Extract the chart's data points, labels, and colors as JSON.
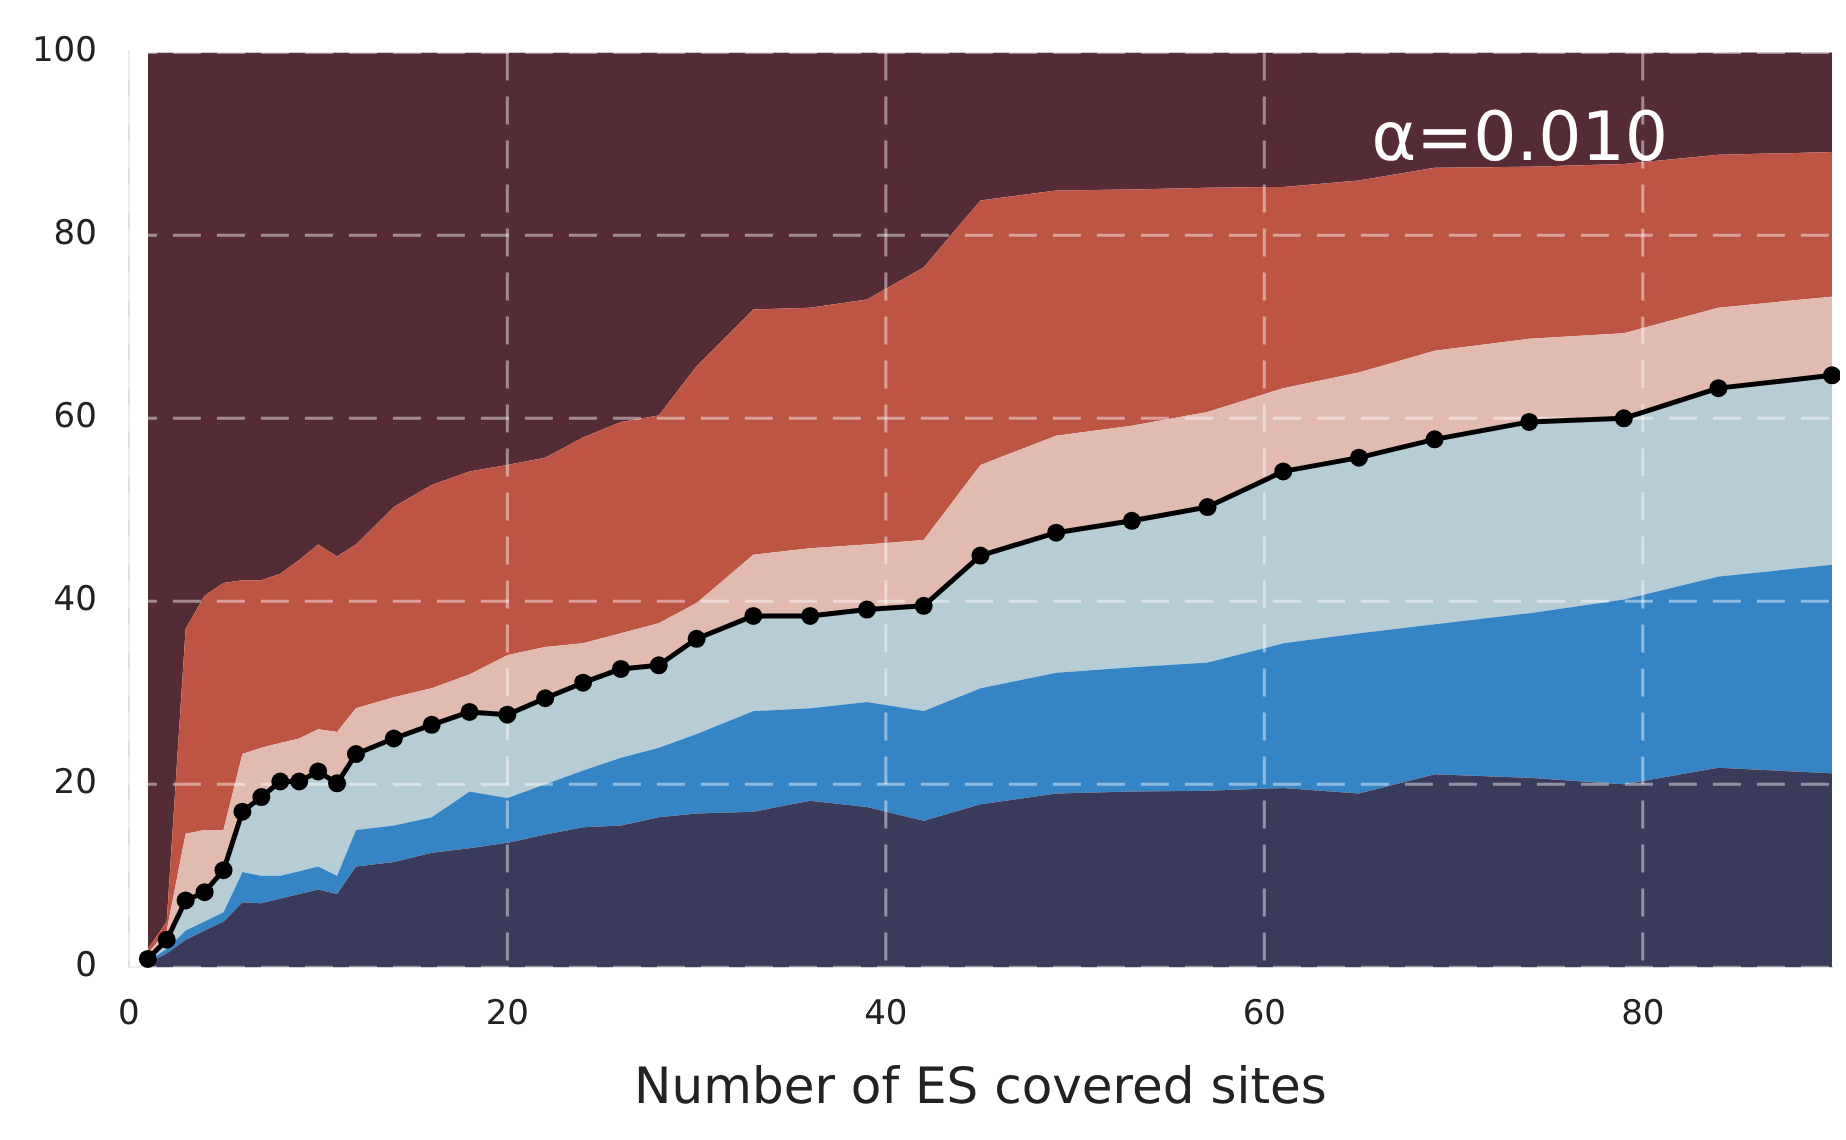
{
  "chart_data": {
    "type": "area",
    "stacked": true,
    "xlabel": "Number of ES covered sites",
    "annotations": [
      "α=0.010"
    ],
    "x": [
      1,
      2,
      3,
      4,
      5,
      6,
      7,
      8,
      9,
      10,
      11,
      12,
      14,
      16,
      18,
      20,
      22,
      24,
      26,
      28,
      30,
      33,
      36,
      39,
      42,
      45,
      49,
      53,
      57,
      61,
      65,
      69,
      74,
      79,
      84,
      90
    ],
    "series": [
      {
        "color": "#3a3a5a",
        "values": [
          0.5,
          1.5,
          3,
          4,
          5,
          7.1,
          7,
          7.5,
          8,
          8.5,
          8,
          11,
          11.5,
          12.5,
          13,
          13.6,
          14.5,
          15.3,
          15.5,
          16.4,
          16.8,
          17,
          18.2,
          17.5,
          16,
          17.8,
          19,
          19.2,
          19.3,
          19.6,
          19,
          21.1,
          20.7,
          20,
          21.8,
          21.2
        ]
      },
      {
        "color": "#3584c6",
        "values": [
          0.2,
          0.5,
          1,
          1,
          1,
          3.3,
          3,
          2.5,
          2.5,
          2.5,
          2,
          4,
          4,
          3.9,
          6.2,
          4.9,
          5.5,
          6.2,
          7.4,
          7.6,
          8.7,
          11,
          10.1,
          11.5,
          12,
          12.7,
          13.2,
          13.6,
          14,
          15.8,
          17.5,
          16.4,
          18,
          20.2,
          20.9,
          22.8
        ]
      },
      {
        "color": "#b7cdd6",
        "marker": "circle",
        "line_style": "solid",
        "values": [
          0.2,
          1,
          3.3,
          3.2,
          4.6,
          6.6,
          8.6,
          10.3,
          9.8,
          10.4,
          10.1,
          8.3,
          9.5,
          10.1,
          8.7,
          9.1,
          9.4,
          9.6,
          9.7,
          9,
          10.4,
          10.4,
          10.1,
          10.1,
          11.5,
          14.5,
          15.3,
          16,
          17,
          18.8,
          19.2,
          20.2,
          20.9,
          19.8,
          20.6,
          20.7
        ]
      },
      {
        "color": "#e1bbb0",
        "values": [
          0.6,
          1,
          7.3,
          6.8,
          4.4,
          6.3,
          5.4,
          4.2,
          4.7,
          4.6,
          5.6,
          5,
          4.5,
          4,
          4.1,
          6.5,
          5.6,
          4.3,
          3.9,
          4.6,
          3.9,
          6.7,
          7.4,
          7.1,
          7.2,
          9.9,
          10.6,
          10.4,
          10.4,
          9.1,
          9.3,
          9.7,
          9.1,
          9.3,
          8.8,
          8.6
        ]
      },
      {
        "color": "#bd5444",
        "values": [
          0.5,
          1,
          22.4,
          25.6,
          27,
          19,
          18.3,
          18.5,
          19.5,
          20.2,
          19.2,
          17.9,
          20.8,
          22.2,
          22.2,
          20.8,
          20.7,
          22.5,
          23.1,
          22.7,
          25.9,
          26.8,
          26.3,
          26.8,
          29.8,
          28.9,
          26.8,
          25.8,
          24.5,
          22,
          21,
          20,
          18.8,
          18.5,
          16.7,
          15.8
        ]
      },
      {
        "color": "#552c35",
        "values": [
          98,
          95,
          63,
          59.4,
          58,
          57.7,
          57.7,
          57,
          55.5,
          53.8,
          55.1,
          53.8,
          49.7,
          47.3,
          45.8,
          45.1,
          44.3,
          42.1,
          40.4,
          39.7,
          34.3,
          28.1,
          27.9,
          27,
          23.5,
          16.2,
          15.1,
          15,
          14.8,
          14.7,
          14,
          12.6,
          12.5,
          12.2,
          11.2,
          11.2
        ]
      }
    ],
    "xlim": [
      0,
      90
    ],
    "xticks": [
      0,
      20,
      40,
      60,
      80
    ],
    "ylim": [
      0,
      100
    ],
    "yticks": [
      0,
      20,
      40,
      60,
      80,
      100
    ],
    "grid": true,
    "legend": false
  }
}
